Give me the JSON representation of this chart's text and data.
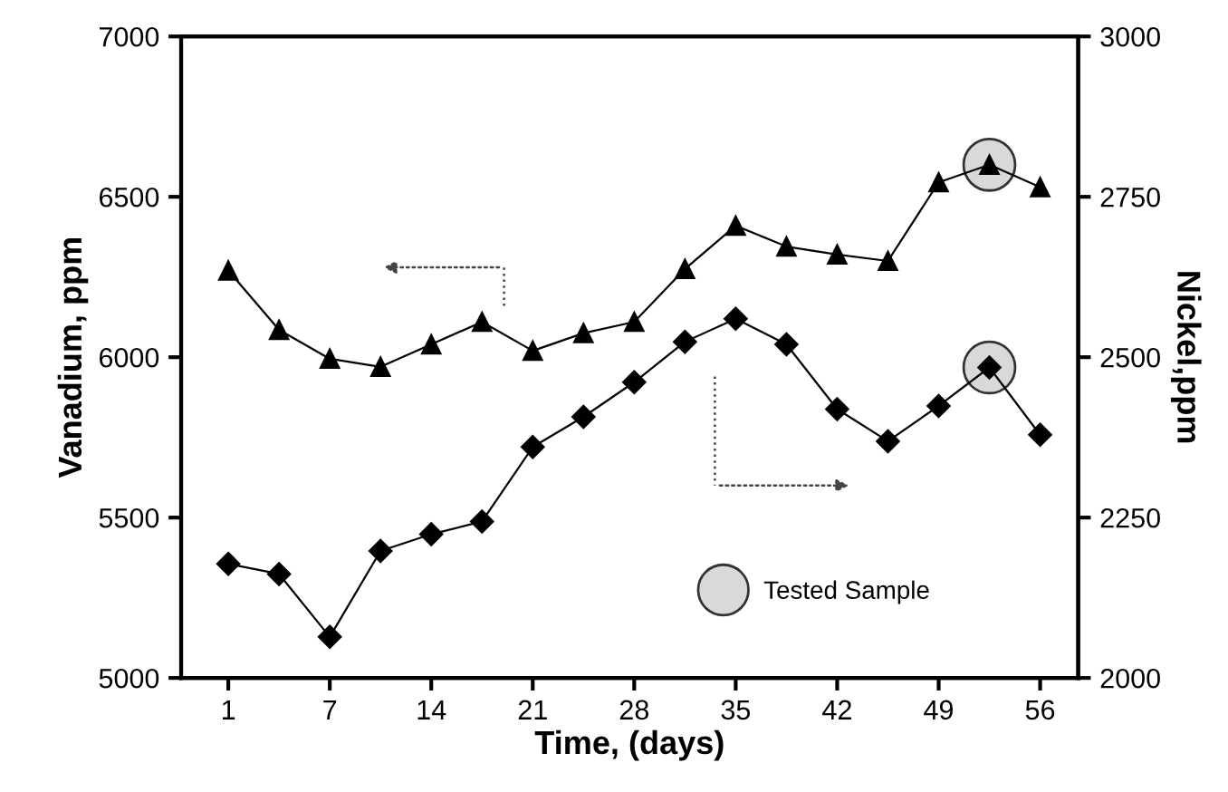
{
  "chart_data": {
    "type": "line",
    "xlabel": "Time, (days)",
    "ylabel": "Vanadium, ppm",
    "y2label": "Nickel,ppm",
    "categories": [
      "1",
      null,
      "7",
      null,
      "14",
      null,
      "21",
      null,
      "28",
      null,
      "35",
      null,
      "42",
      null,
      "49",
      null,
      "56"
    ],
    "series": [
      {
        "color": "#000000",
        "marker": "triangle",
        "values": [
          6270,
          6085,
          5995,
          5970,
          6040,
          6110,
          6020,
          6075,
          6110,
          6275,
          6410,
          6345,
          6320,
          6300,
          6545,
          6600,
          6530
        ]
      },
      {
        "color": "#000000",
        "marker": "diamond",
        "axis": "y2",
        "values": [
          2178,
          2162,
          2064,
          2198,
          2224,
          2244,
          2360,
          2407,
          2461,
          2524,
          2560,
          2520,
          2419,
          2369,
          2424,
          2484,
          2379
        ]
      },
      {
        "type": "scatter",
        "name": "Tested Sample",
        "color": "#d9d9d9",
        "marker": "circle",
        "values": [
          null,
          null,
          null,
          null,
          null,
          null,
          null,
          null,
          null,
          null,
          null,
          null,
          null,
          null,
          null,
          6600,
          null
        ]
      },
      {
        "type": "scatter",
        "color": "#d9d9d9",
        "marker": "circle",
        "axis": "y2",
        "values": [
          null,
          null,
          null,
          null,
          null,
          null,
          null,
          null,
          null,
          null,
          null,
          null,
          null,
          null,
          null,
          2484,
          null
        ]
      }
    ],
    "ylim": [
      5000,
      7000
    ],
    "yticks": [
      5000,
      5500,
      6000,
      6500,
      7000
    ],
    "y2lim": [
      2000,
      3000
    ],
    "y2ticks": [
      2000,
      2250,
      2500,
      2750,
      3000
    ],
    "legend": "bottom right",
    "grid": false
  }
}
